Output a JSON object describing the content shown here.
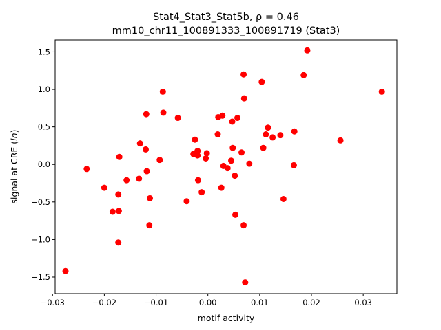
{
  "chart_data": {
    "type": "scatter",
    "title_line1": "Stat4_Stat3_Stat5b, ρ = 0.46",
    "title_line2": "mm10_chr11_100891333_100891719 (Stat3)",
    "xlabel": "motif activity",
    "ylabel": "signal at CRE (ln)",
    "xlim": [
      -0.0295,
      0.0365
    ],
    "ylim": [
      -1.72,
      1.66
    ],
    "xticks": [
      -0.03,
      -0.02,
      -0.01,
      0.0,
      0.01,
      0.02,
      0.03
    ],
    "xtick_labels": [
      "−0.03",
      "−0.02",
      "−0.01",
      "0.00",
      "0.01",
      "0.02",
      "0.03"
    ],
    "yticks": [
      -1.5,
      -1.0,
      -0.5,
      0.0,
      0.5,
      1.0,
      1.5
    ],
    "ytick_labels": [
      "−1.5",
      "−1.0",
      "−0.5",
      "0.0",
      "0.5",
      "1.0",
      "1.5"
    ],
    "grid": false,
    "marker_color": "#ff0000",
    "points": [
      {
        "x": -0.0275,
        "y": -1.42
      },
      {
        "x": -0.0234,
        "y": -0.06
      },
      {
        "x": -0.02,
        "y": -0.31
      },
      {
        "x": -0.0184,
        "y": -0.63
      },
      {
        "x": -0.0173,
        "y": -1.04
      },
      {
        "x": -0.0173,
        "y": -0.4
      },
      {
        "x": -0.0172,
        "y": -0.62
      },
      {
        "x": -0.0171,
        "y": 0.1
      },
      {
        "x": -0.0157,
        "y": -0.21
      },
      {
        "x": -0.0133,
        "y": -0.19
      },
      {
        "x": -0.0131,
        "y": 0.28
      },
      {
        "x": -0.012,
        "y": 0.2
      },
      {
        "x": -0.0119,
        "y": 0.67
      },
      {
        "x": -0.0118,
        "y": -0.09
      },
      {
        "x": -0.0113,
        "y": -0.81
      },
      {
        "x": -0.0112,
        "y": -0.45
      },
      {
        "x": -0.0093,
        "y": 0.06
      },
      {
        "x": -0.0087,
        "y": 0.97
      },
      {
        "x": -0.0086,
        "y": 0.69
      },
      {
        "x": -0.0058,
        "y": 0.62
      },
      {
        "x": -0.0041,
        "y": -0.49
      },
      {
        "x": -0.0028,
        "y": 0.14
      },
      {
        "x": -0.0025,
        "y": 0.33
      },
      {
        "x": -0.002,
        "y": 0.18
      },
      {
        "x": -0.002,
        "y": 0.12
      },
      {
        "x": -0.0019,
        "y": -0.21
      },
      {
        "x": -0.0012,
        "y": -0.37
      },
      {
        "x": -0.0004,
        "y": 0.08
      },
      {
        "x": -0.0002,
        "y": 0.15
      },
      {
        "x": 0.0019,
        "y": 0.4
      },
      {
        "x": 0.002,
        "y": 0.63
      },
      {
        "x": 0.0026,
        "y": -0.31
      },
      {
        "x": 0.0028,
        "y": 0.65
      },
      {
        "x": 0.003,
        "y": -0.02
      },
      {
        "x": 0.0038,
        "y": -0.05
      },
      {
        "x": 0.0045,
        "y": 0.05
      },
      {
        "x": 0.0047,
        "y": 0.57
      },
      {
        "x": 0.0048,
        "y": 0.22
      },
      {
        "x": 0.0052,
        "y": -0.15
      },
      {
        "x": 0.0053,
        "y": -0.67
      },
      {
        "x": 0.0057,
        "y": 0.62
      },
      {
        "x": 0.0065,
        "y": 0.16
      },
      {
        "x": 0.0069,
        "y": -0.81
      },
      {
        "x": 0.0069,
        "y": 1.2
      },
      {
        "x": 0.007,
        "y": 0.88
      },
      {
        "x": 0.0072,
        "y": -1.57
      },
      {
        "x": 0.008,
        "y": 0.01
      },
      {
        "x": 0.0104,
        "y": 1.1
      },
      {
        "x": 0.0107,
        "y": 0.22
      },
      {
        "x": 0.0112,
        "y": 0.4
      },
      {
        "x": 0.0116,
        "y": 0.49
      },
      {
        "x": 0.0125,
        "y": 0.36
      },
      {
        "x": 0.014,
        "y": 0.39
      },
      {
        "x": 0.0146,
        "y": -0.46
      },
      {
        "x": 0.0166,
        "y": -0.01
      },
      {
        "x": 0.0167,
        "y": 0.44
      },
      {
        "x": 0.0185,
        "y": 1.19
      },
      {
        "x": 0.0192,
        "y": 1.52
      },
      {
        "x": 0.0256,
        "y": 0.32
      },
      {
        "x": 0.0336,
        "y": 0.97
      }
    ]
  }
}
